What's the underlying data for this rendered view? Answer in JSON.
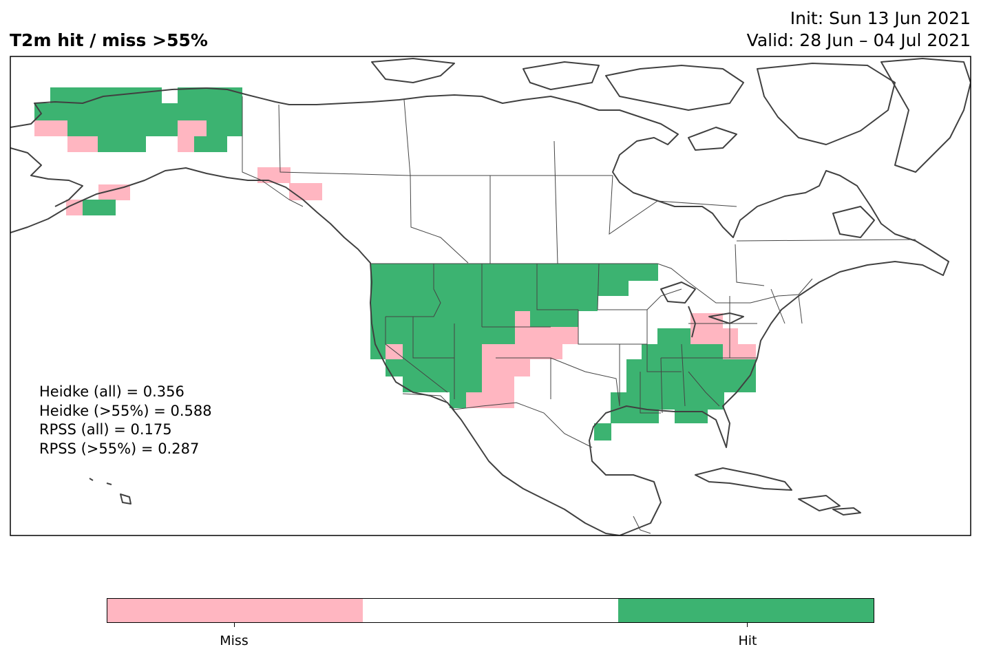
{
  "title": "T2m hit / miss  >55%",
  "init_text": "Init: Sun 13 Jun 2021",
  "valid_text": "Valid: 28 Jun – 04 Jul 2021",
  "stats": [
    "Heidke (all) = 0.356",
    "Heidke (>55%) = 0.588",
    "RPSS (all) = 0.175",
    "RPSS (>55%) = 0.287"
  ],
  "colors": {
    "miss": "#ffb6c1",
    "neutral": "#ffffff",
    "hit": "#3cb371",
    "coast": "#404040"
  },
  "colorbar": {
    "segments": [
      "miss",
      "neutral",
      "hit"
    ],
    "labels": [
      "Miss",
      "Hit"
    ]
  }
}
